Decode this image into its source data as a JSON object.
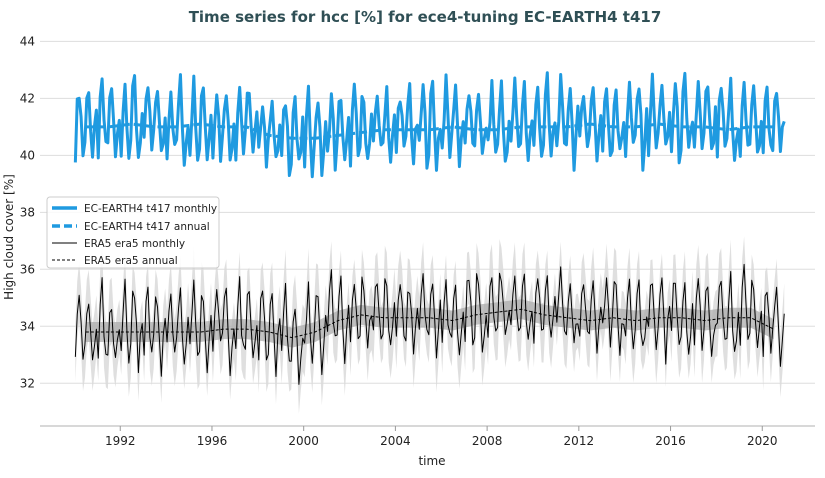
{
  "chart_data": {
    "type": "line",
    "title": "Time series for hcc [%] for ece4-tuning EC-EARTH4 t417",
    "xlabel": "time",
    "ylabel": "High cloud cover [%]",
    "xlim": [
      1988.5,
      2022.3
    ],
    "ylim": [
      30.5,
      44.4
    ],
    "xticks": [
      1992,
      1996,
      2000,
      2004,
      2008,
      2012,
      2016,
      2020
    ],
    "yticks": [
      32,
      34,
      36,
      38,
      40,
      42,
      44
    ],
    "grid": true,
    "legend_position": "center-left",
    "years": [
      1990,
      1991,
      1992,
      1993,
      1994,
      1995,
      1996,
      1997,
      1998,
      1999,
      2000,
      2001,
      2002,
      2003,
      2004,
      2005,
      2006,
      2007,
      2008,
      2009,
      2010,
      2011,
      2012,
      2013,
      2014,
      2015,
      2016,
      2017,
      2018,
      2019,
      2020
    ],
    "series": [
      {
        "name": "EC-EARTH4 t417 monthly",
        "color": "#1f9ae0",
        "style": "solid-thick",
        "kind": "monthly",
        "source": "EC-EARTH4 t417 annual",
        "monthly_climatology_anomaly": [
          -0.8,
          0.6,
          1.4,
          0.3,
          -0.9,
          -0.5,
          0.9,
          1.5,
          0.0,
          -1.1,
          -0.4,
          0.3
        ]
      },
      {
        "name": "EC-EARTH4 t417 annual",
        "color": "#1f9ae0",
        "style": "dashed-thick",
        "kind": "annual",
        "values": [
          41.0,
          41.0,
          41.1,
          41.0,
          41.0,
          41.1,
          41.0,
          41.0,
          40.7,
          40.6,
          40.6,
          40.7,
          40.8,
          40.9,
          40.9,
          40.9,
          41.0,
          40.9,
          40.9,
          41.0,
          41.0,
          41.0,
          41.1,
          41.0,
          41.0,
          41.1,
          41.0,
          41.0,
          40.9,
          41.0,
          41.0
        ]
      },
      {
        "name": "ERA5 era5 monthly",
        "color": "#000000",
        "style": "solid-thin",
        "kind": "monthly",
        "source": "ERA5 era5 annual",
        "monthly_climatology_anomaly": [
          -0.6,
          0.8,
          1.5,
          0.2,
          -0.8,
          -0.4,
          1.0,
          1.2,
          -0.1,
          -1.2,
          -0.5,
          0.2
        ],
        "band_halfwidth": 1.0
      },
      {
        "name": "ERA5 era5 annual",
        "color": "#000000",
        "style": "dashed-thin",
        "kind": "annual",
        "values": [
          33.8,
          33.8,
          33.8,
          33.8,
          33.8,
          33.8,
          33.9,
          33.9,
          33.8,
          33.6,
          33.8,
          34.2,
          34.4,
          34.3,
          34.3,
          34.3,
          34.2,
          34.4,
          34.5,
          34.6,
          34.4,
          34.3,
          34.2,
          34.3,
          34.2,
          34.3,
          34.3,
          34.2,
          34.3,
          34.3,
          33.9
        ]
      }
    ]
  }
}
